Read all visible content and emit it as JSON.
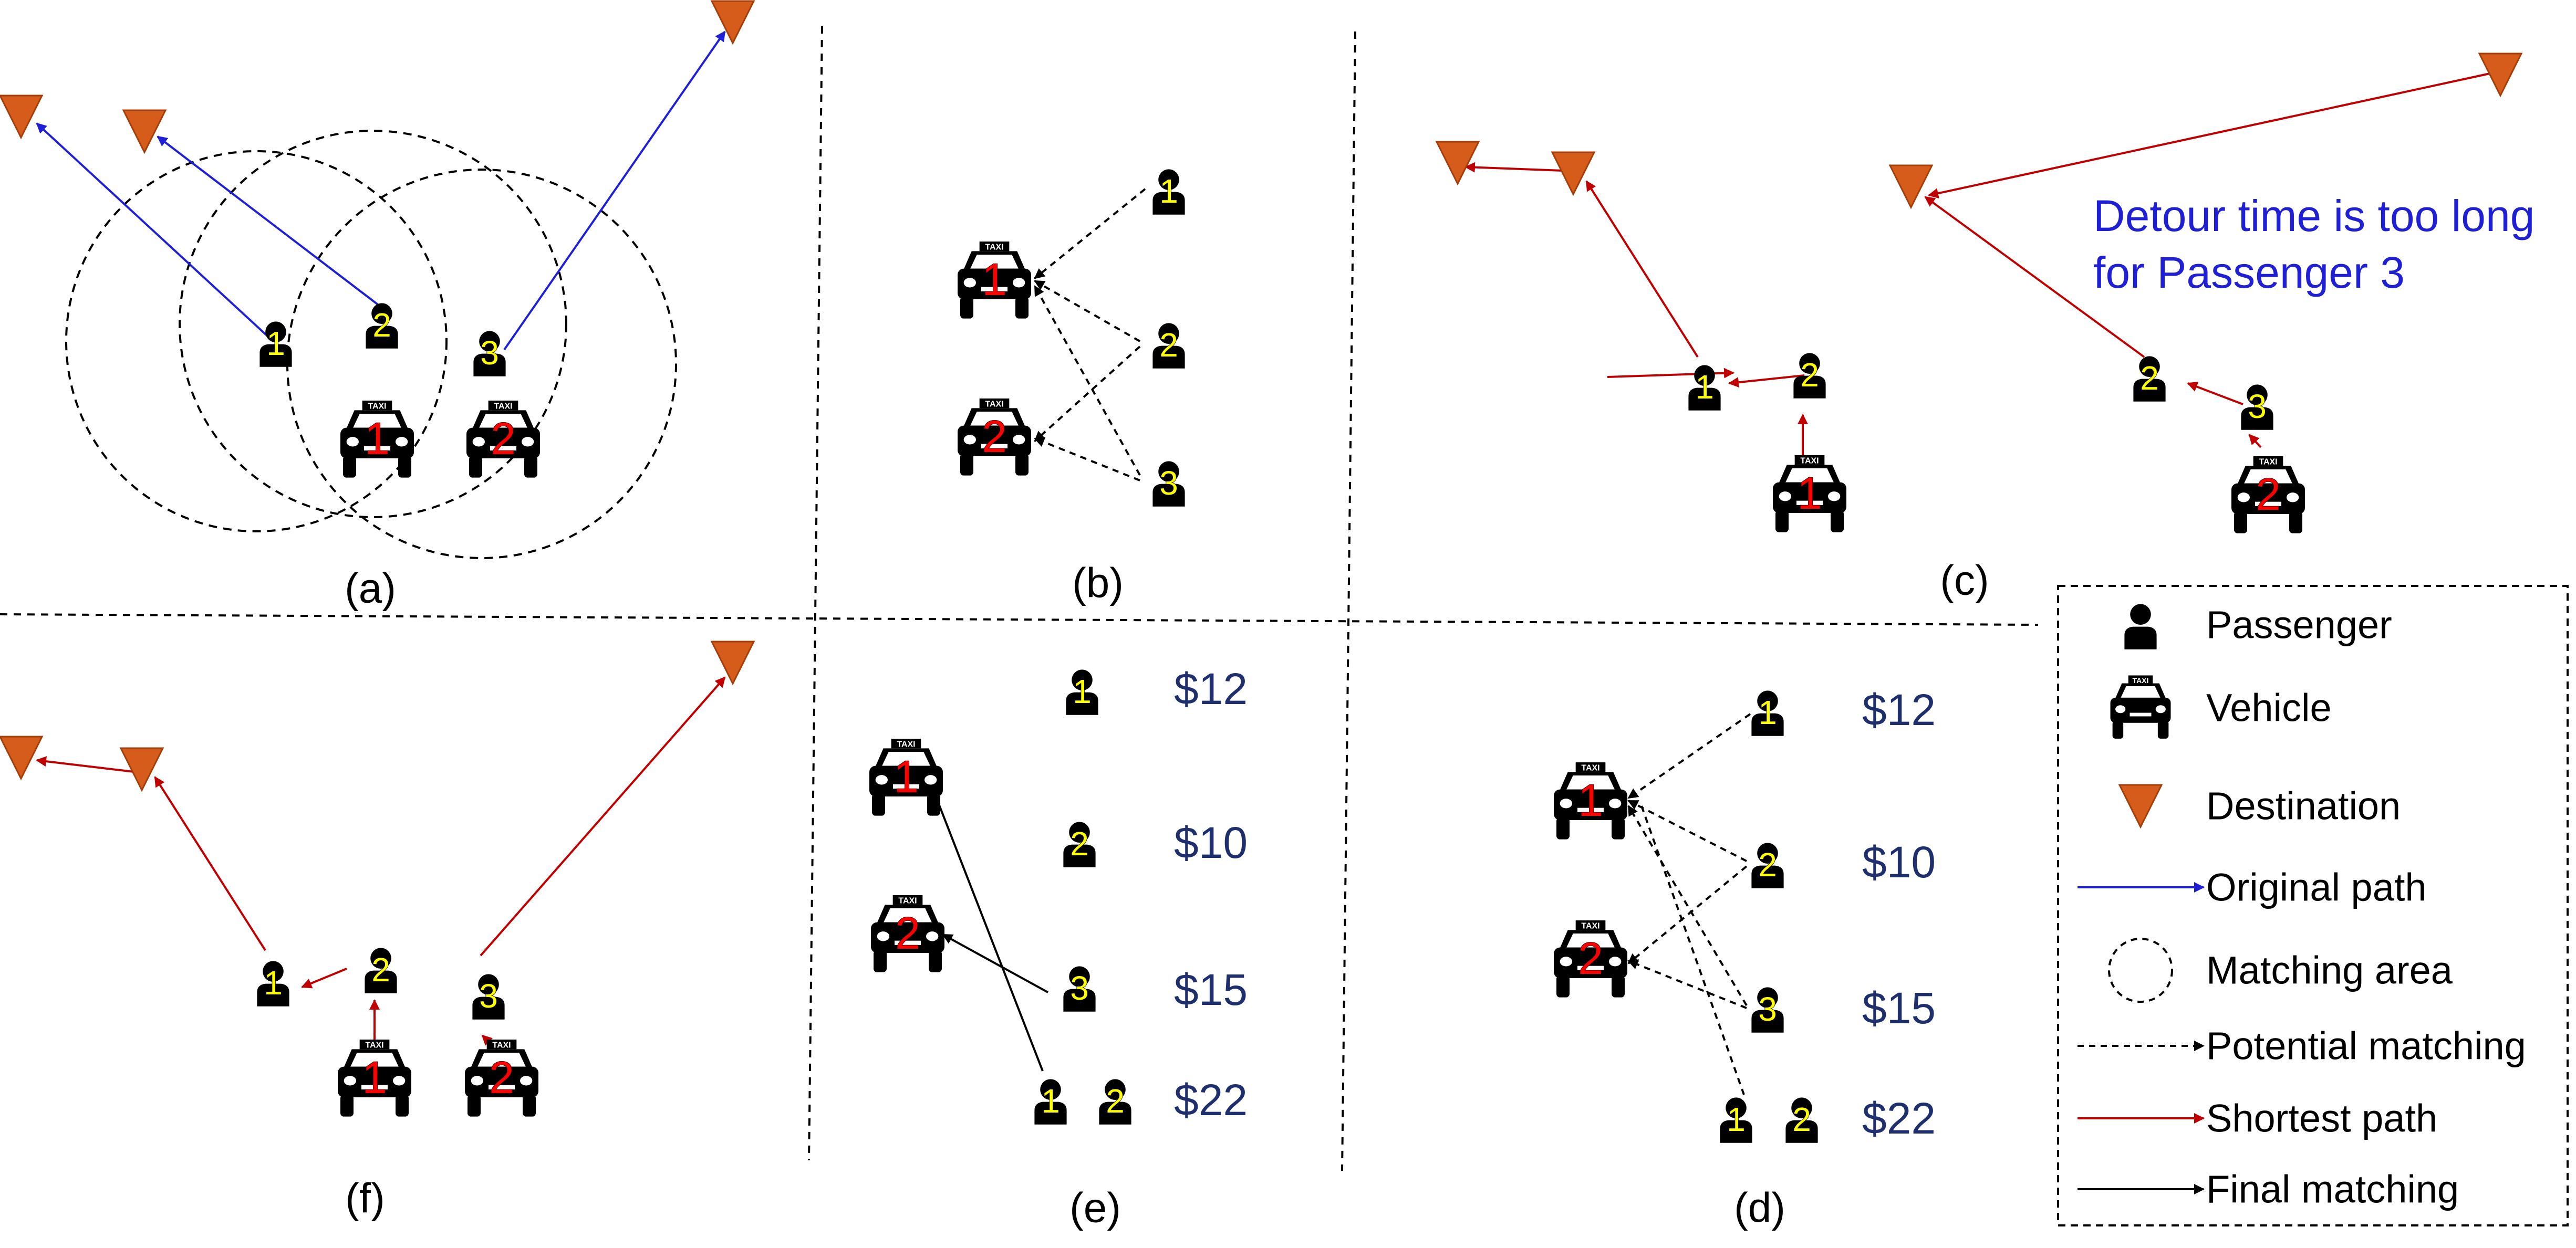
{
  "panels": [
    {
      "id": "a",
      "label": "(a)"
    },
    {
      "id": "b",
      "label": "(b)"
    },
    {
      "id": "c",
      "label": "(c)"
    },
    {
      "id": "d",
      "label": "(d)"
    },
    {
      "id": "e",
      "label": "(e)"
    },
    {
      "id": "f",
      "label": "(f)"
    }
  ],
  "panel_c": {
    "note_line1": "Detour time is too long",
    "note_line2": "for Passenger 3"
  },
  "prices": [
    "$12",
    "$10",
    "$15",
    "$22"
  ],
  "passenger_numbers": [
    "1",
    "2",
    "3"
  ],
  "vehicle_numbers": [
    "1",
    "2"
  ],
  "taxi_sign": "TAXI",
  "legend": {
    "items": [
      {
        "icon": "passenger-icon",
        "label": "Passenger"
      },
      {
        "icon": "vehicle-icon",
        "label": "Vehicle"
      },
      {
        "icon": "destination-icon",
        "label": "Destination"
      },
      {
        "icon": "blue-arrow-icon",
        "label": "Original path"
      },
      {
        "icon": "dashed-circle-icon",
        "label": "Matching area"
      },
      {
        "icon": "dashed-arrow-icon",
        "label": "Potential matching"
      },
      {
        "icon": "red-arrow-icon",
        "label": "Shortest path"
      },
      {
        "icon": "black-arrow-icon",
        "label": "Final matching"
      }
    ]
  },
  "colors": {
    "original_path": "#1f1fd6",
    "shortest_path": "#c00000",
    "destination": "#d65c1c",
    "number_passenger": "#ffff00",
    "number_vehicle": "#ff0000",
    "price": "#1f2f6e",
    "note": "#1f1fd6"
  }
}
